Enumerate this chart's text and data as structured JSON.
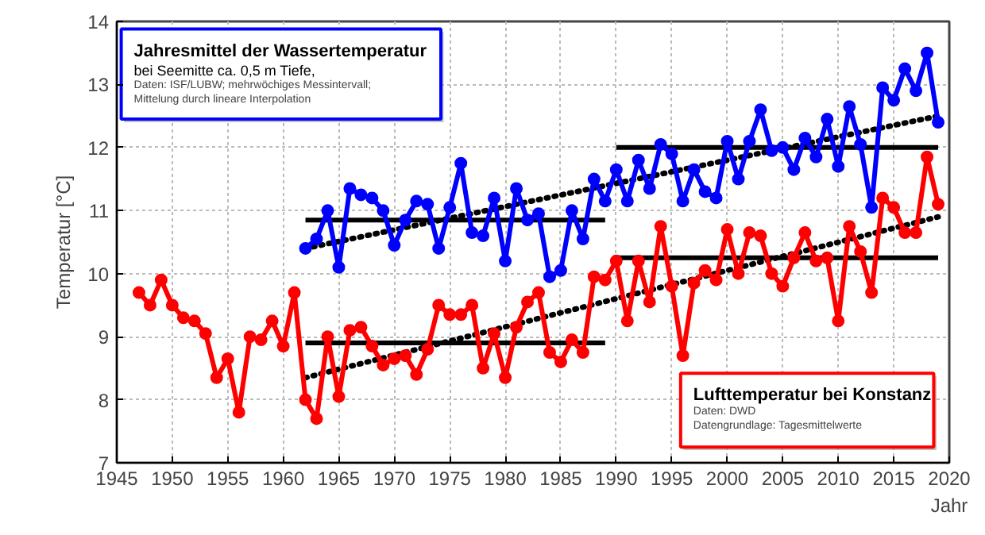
{
  "chart_data": {
    "type": "line",
    "xlabel": "Jahr",
    "ylabel": "Temperatur [°C]",
    "xlim": [
      1945,
      2020
    ],
    "xticks": [
      1945,
      1950,
      1955,
      1960,
      1965,
      1970,
      1975,
      1980,
      1985,
      1990,
      1995,
      2000,
      2005,
      2010,
      2015,
      2020
    ],
    "ylim": [
      7,
      14
    ],
    "yticks": [
      7,
      8,
      9,
      10,
      11,
      12,
      13,
      14
    ],
    "grid": true,
    "marker": "circle",
    "line_style": "solid",
    "annotations": [
      "Jahresmittel der Wassertemperatur",
      "bei Seemitte ca. 0,5 m Tiefe,",
      "Daten:  ISF/LUBW;  mehrwöchiges  Messintervall;",
      "Mittelung  durch lineare Interpolation",
      "Lufttemperatur  bei Konstanz",
      "Daten:  DWD",
      "Datengrundlage:  Tagesmittelwerte"
    ],
    "series": [
      {
        "color": "#ff0000",
        "x": [
          1947,
          1948,
          1949,
          1950,
          1951,
          1952,
          1953,
          1954,
          1955,
          1956,
          1957,
          1958,
          1959,
          1960,
          1961,
          1962,
          1963,
          1964,
          1965,
          1966,
          1967,
          1968,
          1969,
          1970,
          1971,
          1972,
          1973,
          1974,
          1975,
          1976,
          1977,
          1978,
          1979,
          1980,
          1981,
          1982,
          1983,
          1984,
          1985,
          1986,
          1987,
          1988,
          1989,
          1990,
          1991,
          1992,
          1993,
          1994,
          1995,
          1996,
          1997,
          1998,
          1999,
          2000,
          2001,
          2002,
          2003,
          2004,
          2005,
          2006,
          2007,
          2008,
          2009,
          2010,
          2011,
          2012,
          2013,
          2014,
          2015,
          2016,
          2017,
          2018,
          2019
        ],
        "values": [
          9.7,
          9.5,
          9.9,
          9.5,
          9.3,
          9.25,
          9.05,
          8.35,
          8.65,
          7.8,
          9.0,
          8.95,
          9.25,
          8.85,
          9.7,
          8.0,
          7.7,
          9.0,
          8.05,
          9.1,
          9.15,
          8.85,
          8.55,
          8.65,
          8.7,
          8.4,
          8.8,
          9.5,
          9.35,
          9.35,
          9.5,
          8.5,
          9.05,
          8.35,
          9.15,
          9.55,
          9.7,
          8.75,
          8.6,
          8.95,
          8.75,
          9.95,
          9.9,
          10.2,
          9.25,
          10.2,
          9.55,
          10.75,
          9.8,
          8.7,
          9.85,
          10.05,
          9.9,
          10.7,
          10.0,
          10.65,
          10.6,
          10.0,
          9.8,
          10.25,
          10.65,
          10.2,
          10.25,
          9.25,
          10.75,
          10.35,
          9.7,
          11.2,
          11.05,
          10.65,
          10.65,
          11.85,
          11.1
        ]
      },
      {
        "color": "#0000ff",
        "x": [
          1962,
          1963,
          1964,
          1965,
          1966,
          1967,
          1968,
          1969,
          1970,
          1971,
          1972,
          1973,
          1974,
          1975,
          1976,
          1977,
          1978,
          1979,
          1980,
          1981,
          1982,
          1983,
          1984,
          1985,
          1986,
          1987,
          1988,
          1989,
          1990,
          1991,
          1992,
          1993,
          1994,
          1995,
          1996,
          1997,
          1998,
          1999,
          2000,
          2001,
          2002,
          2003,
          2004,
          2005,
          2006,
          2007,
          2008,
          2009,
          2010,
          2011,
          2012,
          2013,
          2014,
          2015,
          2016,
          2017,
          2018,
          2019
        ],
        "values": [
          10.4,
          10.55,
          11.0,
          10.1,
          11.35,
          11.25,
          11.2,
          11.0,
          10.45,
          10.85,
          11.15,
          11.1,
          10.4,
          11.05,
          11.75,
          10.65,
          10.6,
          11.2,
          10.2,
          11.35,
          10.85,
          10.95,
          9.95,
          10.05,
          11.0,
          10.55,
          11.5,
          11.15,
          11.65,
          11.15,
          11.8,
          11.35,
          12.05,
          11.9,
          11.15,
          11.65,
          11.3,
          11.2,
          12.1,
          11.5,
          12.1,
          12.6,
          11.95,
          12.0,
          11.65,
          12.15,
          11.85,
          12.45,
          11.7,
          12.65,
          12.05,
          11.05,
          12.95,
          12.75,
          13.25,
          12.9,
          13.5,
          12.4
        ]
      },
      {
        "type": "line",
        "color": "#000000",
        "marker": "none",
        "x": [
          1962,
          1989
        ],
        "values": [
          10.85,
          10.85
        ]
      },
      {
        "type": "line",
        "color": "#000000",
        "marker": "none",
        "x": [
          1990,
          2019
        ],
        "values": [
          12.0,
          12.0
        ]
      },
      {
        "type": "line",
        "color": "#000000",
        "marker": "none",
        "x": [
          1962,
          1989
        ],
        "values": [
          8.9,
          8.9
        ]
      },
      {
        "type": "line",
        "color": "#000000",
        "marker": "none",
        "x": [
          1990,
          2019
        ],
        "values": [
          10.25,
          10.25
        ]
      },
      {
        "type": "line",
        "color": "#000000",
        "marker": "none",
        "line_style": "dotted",
        "x": [
          1962,
          2019
        ],
        "values": [
          10.4,
          12.5
        ]
      },
      {
        "type": "line",
        "color": "#000000",
        "marker": "none",
        "line_style": "dotted",
        "x": [
          1962,
          2019
        ],
        "values": [
          8.35,
          10.9
        ]
      }
    ]
  }
}
